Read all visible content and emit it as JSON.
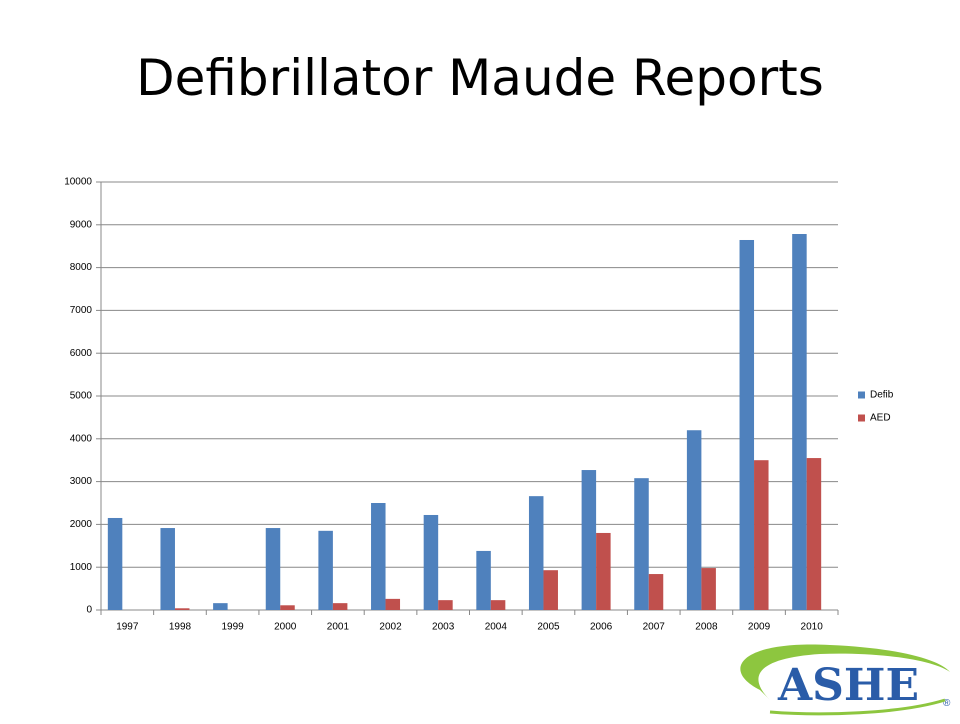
{
  "chart_data": {
    "type": "bar",
    "title": "Defibrillator Maude Reports",
    "categories": [
      "1997",
      "1998",
      "1999",
      "2000",
      "2001",
      "2002",
      "2003",
      "2004",
      "2005",
      "2006",
      "2007",
      "2008",
      "2009",
      "2010"
    ],
    "series": [
      {
        "name": "Defib",
        "color": "#4f81bd",
        "values": [
          2150,
          1915,
          160,
          1915,
          1850,
          2500,
          2220,
          1380,
          2660,
          3270,
          3080,
          4200,
          8645,
          8785
        ]
      },
      {
        "name": "AED",
        "color": "#c0504d",
        "values": [
          0,
          40,
          0,
          110,
          160,
          260,
          230,
          230,
          930,
          1800,
          840,
          980,
          3500,
          3550
        ]
      }
    ],
    "ylim": [
      0,
      10000
    ],
    "yticks": [
      0,
      1000,
      2000,
      3000,
      4000,
      5000,
      6000,
      7000,
      8000,
      9000,
      10000
    ],
    "grid": true,
    "legend": "right"
  },
  "logo": {
    "text": "ASHE",
    "mark": "®"
  }
}
